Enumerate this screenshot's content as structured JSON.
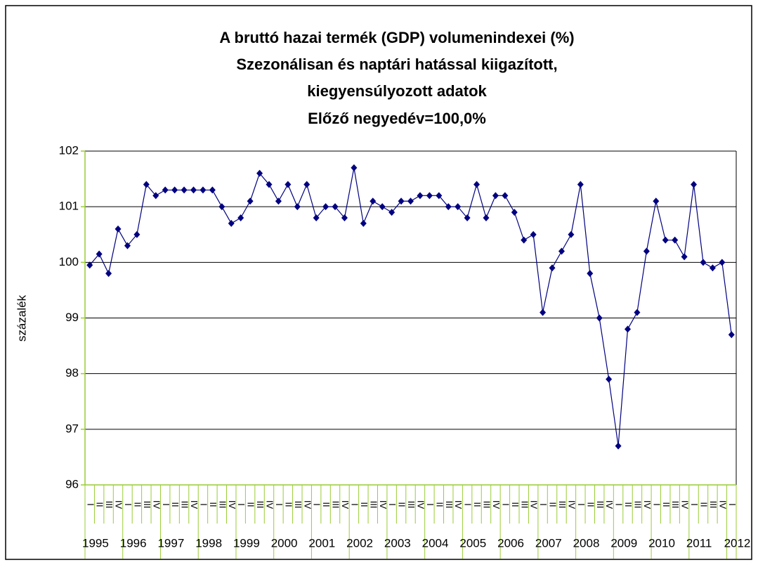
{
  "chart_data": {
    "type": "line",
    "title": [
      "A bruttó hazai termék (GDP) volumenindexei (%)",
      "Szezonálisan és naptári hatással kiigazított,",
      "kiegyensúlyozott adatok",
      "Előző negyedév=100,0%"
    ],
    "y_label": "százalék",
    "categories": [
      "I",
      "II",
      "III",
      "IV",
      "I",
      "II",
      "III",
      "IV",
      "I",
      "II",
      "III",
      "IV",
      "I",
      "II",
      "III",
      "IV",
      "I",
      "II",
      "III",
      "IV",
      "I",
      "II",
      "III",
      "IV",
      "I",
      "II",
      "III",
      "IV",
      "I",
      "II",
      "III",
      "IV",
      "I",
      "II",
      "III",
      "IV",
      "I",
      "II",
      "III",
      "IV",
      "I",
      "II",
      "III",
      "IV",
      "I",
      "II",
      "III",
      "IV",
      "I",
      "II",
      "III",
      "IV",
      "I",
      "II",
      "III",
      "IV",
      "I",
      "II",
      "III",
      "IV",
      "I",
      "II",
      "III",
      "IV",
      "I",
      "II",
      "III",
      "IV",
      "I"
    ],
    "years": [
      "1995",
      "1996",
      "1997",
      "1998",
      "1999",
      "2000",
      "2001",
      "2002",
      "2003",
      "2004",
      "2005",
      "2006",
      "2007",
      "2008",
      "2009",
      "2010",
      "2011",
      "2012"
    ],
    "series": [
      {
        "color": "#000080",
        "values": [
          99.95,
          100.15,
          99.8,
          100.6,
          100.3,
          100.5,
          101.4,
          101.2,
          101.3,
          101.3,
          101.3,
          101.3,
          101.3,
          101.3,
          101.0,
          100.7,
          100.8,
          101.1,
          101.6,
          101.4,
          101.1,
          101.4,
          101.0,
          101.4,
          100.8,
          101.0,
          101.0,
          100.8,
          101.7,
          100.7,
          101.1,
          101.0,
          100.9,
          101.1,
          101.1,
          101.2,
          101.2,
          101.2,
          101.0,
          101.0,
          100.8,
          101.4,
          100.8,
          101.2,
          101.2,
          100.9,
          100.4,
          100.5,
          99.1,
          99.9,
          100.2,
          100.5,
          101.4,
          99.8,
          99.0,
          97.9,
          96.7,
          98.8,
          99.1,
          100.2,
          101.1,
          100.4,
          100.4,
          100.1,
          101.4,
          100.0,
          99.9,
          100.0,
          98.7
        ]
      }
    ],
    "ylim": [
      96,
      102
    ],
    "yticks": [
      96,
      97,
      98,
      99,
      100,
      101,
      102
    ],
    "grid": true
  }
}
